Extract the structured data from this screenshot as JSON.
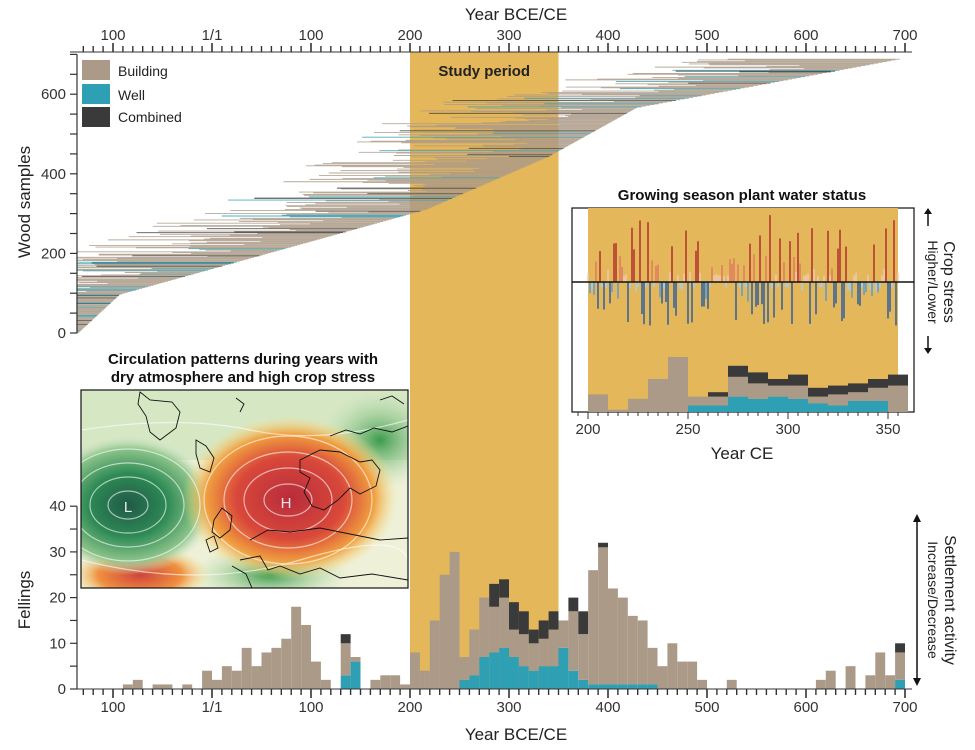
{
  "colors": {
    "building": "#ab9a87",
    "well": "#2f9fb3",
    "combined": "#3a3a3a",
    "study": "#e3b75a",
    "inset_bg": "#e3b75a",
    "high": "#c0392b",
    "low": "#3b7fc4"
  },
  "main": {
    "year_axis_label": "Year BCE/CE",
    "year_ticks": [
      {
        "x": -100,
        "label": "100"
      },
      {
        "x": 0,
        "label": "1/1"
      },
      {
        "x": 100,
        "label": "100"
      },
      {
        "x": 200,
        "label": "200"
      },
      {
        "x": 300,
        "label": "300"
      },
      {
        "x": 400,
        "label": "400"
      },
      {
        "x": 500,
        "label": "500"
      },
      {
        "x": 600,
        "label": "600"
      },
      {
        "x": 700,
        "label": "700"
      }
    ],
    "study_label": "Study period",
    "study_range": [
      200,
      350
    ]
  },
  "wood": {
    "ylabel": "Wood samples",
    "yticks": [
      0,
      200,
      400,
      600
    ],
    "ylim": [
      0,
      700
    ],
    "legend": [
      {
        "key": "building",
        "label": "Building"
      },
      {
        "key": "well",
        "label": "Well"
      },
      {
        "key": "combined",
        "label": "Combined"
      }
    ]
  },
  "map_inset": {
    "title_line1": "Circulation patterns during years with",
    "title_line2": "dry atmosphere and high crop stress",
    "low_label": "L",
    "high_label": "H"
  },
  "crop_inset": {
    "title": "Growing season plant water status",
    "xlabel": "Year CE",
    "xticks": [
      200,
      250,
      300,
      350
    ],
    "side_label": "Crop stress",
    "side_sub": "Higher/Lower"
  },
  "fellings": {
    "ylabel": "Fellings",
    "yticks": [
      0,
      10,
      20,
      30,
      40
    ],
    "side_label": "Settlement activity",
    "side_sub": "Increase/Decrease"
  },
  "chart_data": [
    {
      "type": "bar",
      "title": "",
      "xlabel": "Year BCE/CE",
      "ylabel": "Fellings",
      "xlim": [
        -135,
        700
      ],
      "ylim": [
        0,
        40
      ],
      "bin_width": 10,
      "series": [
        {
          "name": "Building",
          "x": [
            -90,
            -80,
            -60,
            -50,
            -30,
            -10,
            0,
            10,
            20,
            30,
            40,
            50,
            60,
            70,
            80,
            90,
            100,
            110,
            130,
            140,
            160,
            170,
            180,
            190,
            200,
            210,
            220,
            230,
            240,
            250,
            260,
            270,
            280,
            290,
            300,
            310,
            320,
            330,
            340,
            350,
            360,
            370,
            380,
            390,
            400,
            410,
            420,
            430,
            440,
            450,
            460,
            470,
            480,
            490,
            520,
            610,
            620,
            640,
            660,
            670,
            680,
            690
          ],
          "values": [
            1,
            2,
            1,
            1,
            1,
            4,
            2,
            5,
            4,
            9,
            5,
            8,
            9,
            11,
            18,
            14,
            6,
            2,
            7,
            1,
            2,
            3,
            3,
            1,
            8,
            4,
            15,
            25,
            30,
            5,
            10,
            13,
            10,
            11,
            6,
            7,
            6,
            6,
            8,
            6,
            13,
            10,
            25,
            30,
            21,
            19,
            15,
            14,
            8,
            5,
            10,
            6,
            6,
            2,
            2,
            2,
            4,
            5,
            3,
            8,
            3,
            6
          ]
        },
        {
          "name": "Well",
          "x": [
            130,
            140,
            250,
            260,
            270,
            280,
            290,
            300,
            310,
            320,
            330,
            340,
            350,
            360,
            370,
            380,
            390,
            400,
            410,
            420,
            430,
            440,
            450,
            460,
            690
          ],
          "values": [
            3,
            6,
            2,
            3,
            7,
            8,
            9,
            7,
            5,
            4,
            5,
            5,
            9,
            4,
            2,
            1,
            1,
            1,
            1,
            1,
            1,
            1,
            0,
            0,
            2
          ]
        },
        {
          "name": "Combined",
          "x": [
            130,
            140,
            240,
            250,
            260,
            280,
            290,
            300,
            310,
            320,
            330,
            340,
            350,
            360,
            370,
            380,
            390,
            400,
            690
          ],
          "values": [
            2,
            0,
            0,
            0,
            0,
            5,
            4,
            6,
            5,
            3,
            4,
            4,
            0,
            3,
            5,
            0,
            1,
            0,
            2
          ]
        }
      ]
    },
    {
      "type": "bar",
      "title": "Growing season plant water status",
      "xlabel": "Year CE",
      "ylabel": "",
      "xlim": [
        192,
        357
      ],
      "bin_width": 10,
      "series": [
        {
          "name": "Building",
          "x": [
            200,
            210,
            220,
            230,
            240,
            250,
            260,
            270,
            280,
            290,
            300,
            310,
            320,
            330,
            340,
            350
          ],
          "values": [
            8,
            1,
            6,
            15,
            25,
            4,
            4,
            9,
            7,
            5,
            6,
            3,
            5,
            4,
            6,
            12
          ]
        },
        {
          "name": "Well",
          "x": [
            250,
            260,
            270,
            280,
            290,
            300,
            310,
            320,
            330,
            340,
            350
          ],
          "values": [
            3,
            3,
            7,
            6,
            7,
            6,
            4,
            3,
            5,
            5,
            0
          ]
        },
        {
          "name": "Combined",
          "x": [
            260,
            270,
            280,
            290,
            300,
            310,
            320,
            330,
            340,
            350
          ],
          "values": [
            2,
            5,
            5,
            3,
            5,
            4,
            4,
            4,
            4,
            5
          ]
        }
      ]
    }
  ]
}
